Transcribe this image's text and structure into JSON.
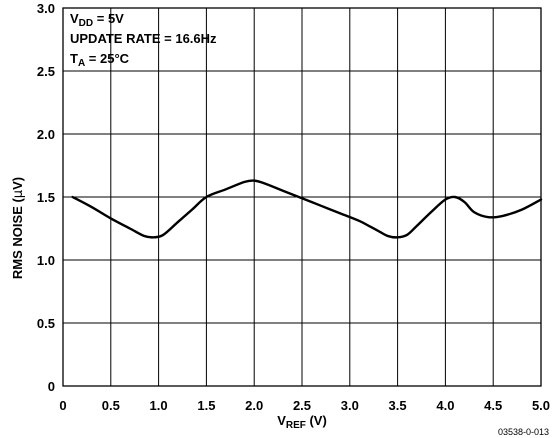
{
  "chart_data": {
    "type": "line",
    "xlabel": {
      "main": "V",
      "sub": "REF",
      "unit": " (V)"
    },
    "ylabel": {
      "pre": "RMS NOISE (",
      "greek": "µ",
      "post": "V)"
    },
    "xlim": [
      0,
      5
    ],
    "ylim": [
      0,
      3
    ],
    "x_ticks": [
      "0",
      "0.5",
      "1.0",
      "1.5",
      "2.0",
      "2.5",
      "3.0",
      "3.5",
      "4.0",
      "4.5",
      "5.0"
    ],
    "y_ticks": [
      "0",
      "0.5",
      "1.0",
      "1.5",
      "2.0",
      "2.5",
      "3.0"
    ],
    "x_tick_values": [
      0,
      0.5,
      1,
      1.5,
      2,
      2.5,
      3,
      3.5,
      4,
      4.5,
      5
    ],
    "y_tick_values": [
      0,
      0.5,
      1,
      1.5,
      2,
      2.5,
      3
    ],
    "grid": true,
    "annotations": [
      {
        "main": "V",
        "sub": "DD",
        "rest": " = 5V"
      },
      {
        "main": "UPDATE RATE = 16.6Hz",
        "sub": "",
        "rest": ""
      },
      {
        "main": "T",
        "sub": "A",
        "rest": " = 25°C"
      }
    ],
    "series": [
      {
        "color": "#000000",
        "x": [
          0.1,
          0.3,
          0.5,
          0.7,
          0.85,
          0.95,
          1.05,
          1.2,
          1.35,
          1.5,
          1.7,
          1.9,
          2.0,
          2.1,
          2.3,
          2.5,
          2.7,
          2.9,
          3.1,
          3.2,
          3.3,
          3.4,
          3.5,
          3.6,
          3.7,
          3.85,
          4.0,
          4.1,
          4.2,
          4.3,
          4.45,
          4.6,
          4.8,
          5.0
        ],
        "y": [
          1.5,
          1.42,
          1.33,
          1.25,
          1.19,
          1.18,
          1.2,
          1.3,
          1.4,
          1.5,
          1.56,
          1.62,
          1.63,
          1.61,
          1.55,
          1.49,
          1.43,
          1.37,
          1.31,
          1.27,
          1.23,
          1.19,
          1.18,
          1.2,
          1.27,
          1.38,
          1.48,
          1.5,
          1.46,
          1.38,
          1.34,
          1.35,
          1.4,
          1.48
        ]
      }
    ]
  },
  "figure_id": "03538-0-013"
}
